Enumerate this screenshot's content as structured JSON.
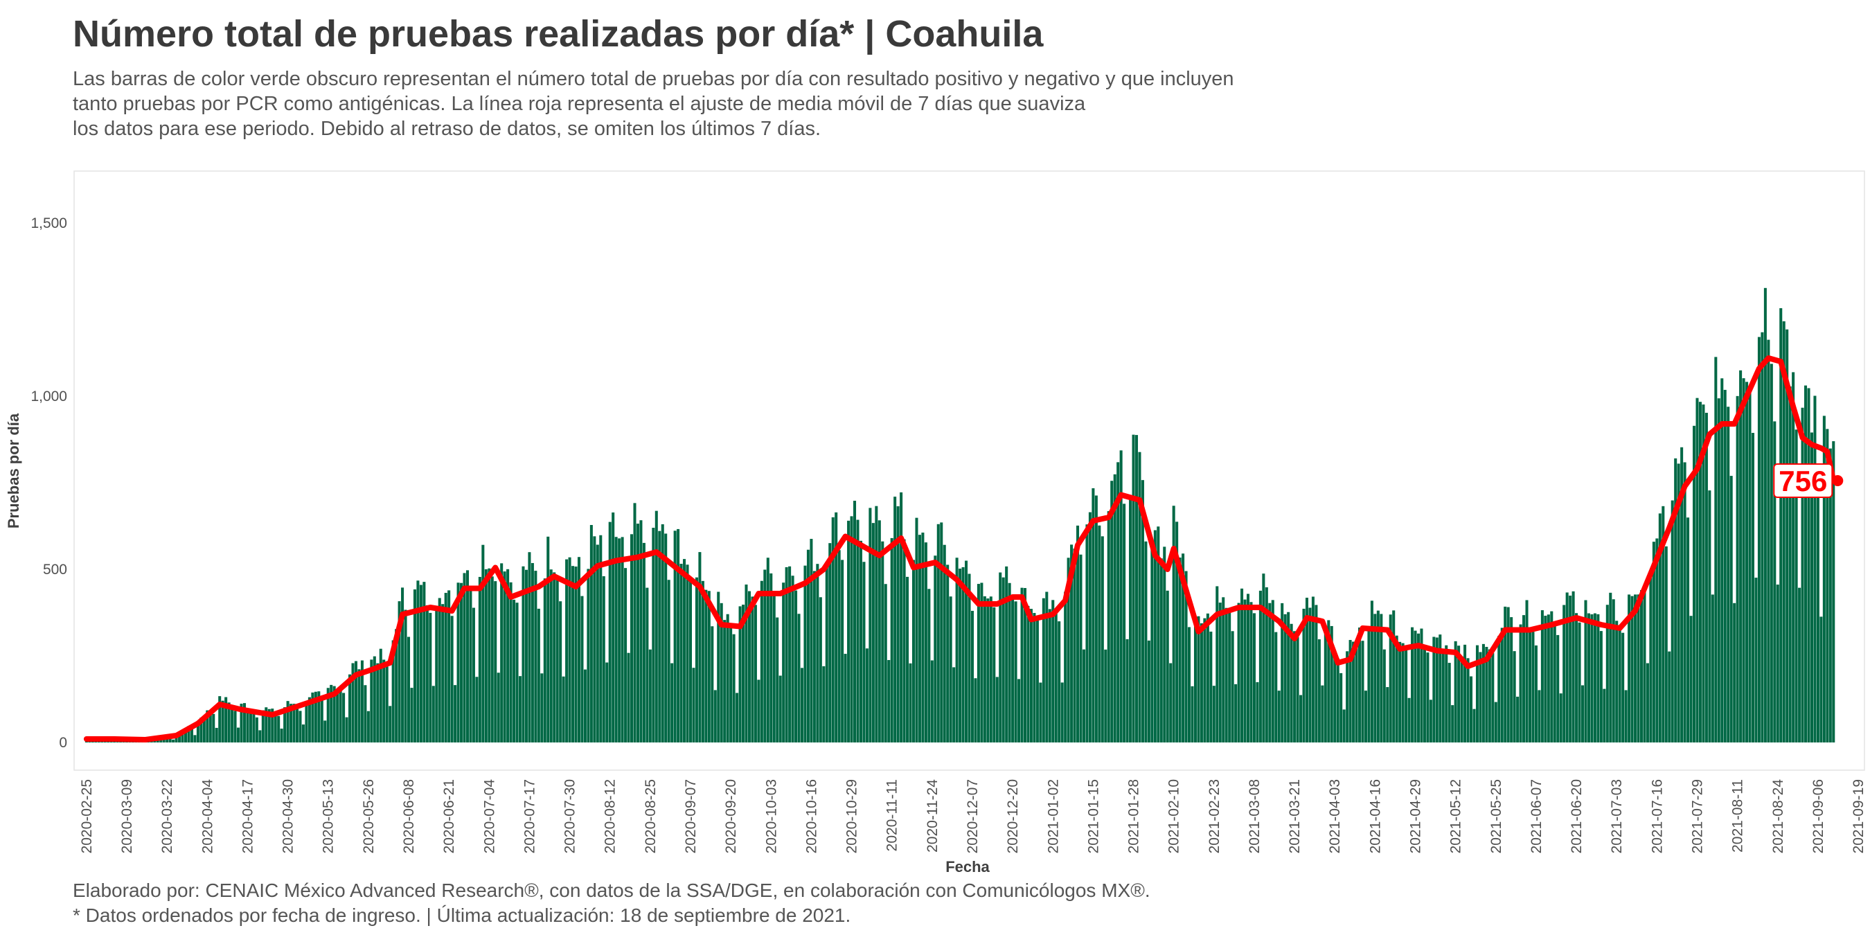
{
  "title": "Número total de pruebas realizadas por día* | Coahuila",
  "subtitle": [
    "Las barras de color verde obscuro representan el número total de pruebas por día con resultado positivo y negativo y que incluyen",
    "tanto pruebas por PCR como antigénicas. La línea roja representa el ajuste de media móvil de 7 días que suaviza",
    "los datos para ese periodo. Debido al retraso de datos, se omiten los últimos 7 días."
  ],
  "caption": [
    "Elaborado por: CENAIC México Advanced Research®, con datos de la SSA/DGE, en colaboración con Comunicólogos MX®.",
    "* Datos ordenados por fecha de ingreso. | Última actualización: 18 de septiembre de 2021."
  ],
  "colors": {
    "bars": "#006845",
    "line": "#ff0000",
    "text": "#404040"
  },
  "chart_data": {
    "type": "bar",
    "xlabel": "Fecha",
    "ylabel": "Pruebas por día",
    "x_start": "2020-02-25",
    "x_end": "2021-09-11",
    "xlim": [
      "2020-02-21",
      "2021-09-21"
    ],
    "ylim": [
      -80,
      1650
    ],
    "y_ticks": [
      0,
      500,
      1000,
      1500
    ],
    "y_tick_labels": [
      "0",
      "500",
      "1,000",
      "1,500"
    ],
    "x_ticks": [
      "2020-02-25",
      "2020-03-09",
      "2020-03-22",
      "2020-04-04",
      "2020-04-17",
      "2020-04-30",
      "2020-05-13",
      "2020-05-26",
      "2020-06-08",
      "2020-06-21",
      "2020-07-04",
      "2020-07-17",
      "2020-07-30",
      "2020-08-12",
      "2020-08-25",
      "2020-09-07",
      "2020-09-20",
      "2020-10-03",
      "2020-10-16",
      "2020-10-29",
      "2020-11-11",
      "2020-11-24",
      "2020-12-07",
      "2020-12-20",
      "2021-01-02",
      "2021-01-15",
      "2021-01-28",
      "2021-02-10",
      "2021-02-23",
      "2021-03-08",
      "2021-03-21",
      "2021-04-03",
      "2021-04-16",
      "2021-04-29",
      "2021-05-12",
      "2021-05-25",
      "2021-06-07",
      "2021-06-20",
      "2021-07-03",
      "2021-07-16",
      "2021-07-29",
      "2021-08-11",
      "2021-08-24",
      "2021-09-06",
      "2021-09-19"
    ],
    "series": [
      {
        "name": "Pruebas totales",
        "style": "bars"
      },
      {
        "name": "Media móvil 7 días",
        "style": "line"
      }
    ],
    "moving_average_points": [
      [
        "2020-02-25",
        10
      ],
      [
        "2020-03-05",
        10
      ],
      [
        "2020-03-15",
        8
      ],
      [
        "2020-03-25",
        20
      ],
      [
        "2020-04-01",
        55
      ],
      [
        "2020-04-08",
        110
      ],
      [
        "2020-04-15",
        95
      ],
      [
        "2020-04-25",
        80
      ],
      [
        "2020-05-05",
        110
      ],
      [
        "2020-05-15",
        140
      ],
      [
        "2020-05-22",
        195
      ],
      [
        "2020-05-27",
        210
      ],
      [
        "2020-06-02",
        230
      ],
      [
        "2020-06-06",
        370
      ],
      [
        "2020-06-15",
        390
      ],
      [
        "2020-06-22",
        380
      ],
      [
        "2020-06-26",
        445
      ],
      [
        "2020-07-01",
        445
      ],
      [
        "2020-07-06",
        505
      ],
      [
        "2020-07-11",
        420
      ],
      [
        "2020-07-20",
        450
      ],
      [
        "2020-07-25",
        480
      ],
      [
        "2020-08-01",
        450
      ],
      [
        "2020-08-08",
        510
      ],
      [
        "2020-08-14",
        525
      ],
      [
        "2020-08-21",
        535
      ],
      [
        "2020-08-27",
        550
      ],
      [
        "2020-09-03",
        500
      ],
      [
        "2020-09-10",
        450
      ],
      [
        "2020-09-17",
        340
      ],
      [
        "2020-09-23",
        335
      ],
      [
        "2020-09-29",
        430
      ],
      [
        "2020-10-06",
        430
      ],
      [
        "2020-10-14",
        460
      ],
      [
        "2020-10-20",
        500
      ],
      [
        "2020-10-27",
        595
      ],
      [
        "2020-11-03",
        560
      ],
      [
        "2020-11-07",
        540
      ],
      [
        "2020-11-14",
        590
      ],
      [
        "2020-11-18",
        505
      ],
      [
        "2020-11-25",
        520
      ],
      [
        "2020-12-02",
        470
      ],
      [
        "2020-12-09",
        400
      ],
      [
        "2020-12-15",
        400
      ],
      [
        "2020-12-20",
        420
      ],
      [
        "2020-12-23",
        420
      ],
      [
        "2020-12-26",
        355
      ],
      [
        "2021-01-02",
        370
      ],
      [
        "2021-01-06",
        410
      ],
      [
        "2021-01-10",
        570
      ],
      [
        "2021-01-15",
        640
      ],
      [
        "2021-01-20",
        650
      ],
      [
        "2021-01-24",
        715
      ],
      [
        "2021-01-30",
        700
      ],
      [
        "2021-02-04",
        540
      ],
      [
        "2021-02-08",
        500
      ],
      [
        "2021-02-10",
        560
      ],
      [
        "2021-02-13",
        470
      ],
      [
        "2021-02-18",
        320
      ],
      [
        "2021-02-24",
        370
      ],
      [
        "2021-03-03",
        390
      ],
      [
        "2021-03-10",
        390
      ],
      [
        "2021-03-16",
        350
      ],
      [
        "2021-03-21",
        300
      ],
      [
        "2021-03-25",
        360
      ],
      [
        "2021-03-30",
        350
      ],
      [
        "2021-04-04",
        230
      ],
      [
        "2021-04-08",
        240
      ],
      [
        "2021-04-12",
        330
      ],
      [
        "2021-04-20",
        325
      ],
      [
        "2021-04-24",
        270
      ],
      [
        "2021-04-30",
        280
      ],
      [
        "2021-05-06",
        265
      ],
      [
        "2021-05-12",
        260
      ],
      [
        "2021-05-16",
        220
      ],
      [
        "2021-05-22",
        240
      ],
      [
        "2021-05-28",
        325
      ],
      [
        "2021-06-05",
        325
      ],
      [
        "2021-06-12",
        340
      ],
      [
        "2021-06-20",
        360
      ],
      [
        "2021-06-28",
        340
      ],
      [
        "2021-07-04",
        330
      ],
      [
        "2021-07-09",
        380
      ],
      [
        "2021-07-15",
        510
      ],
      [
        "2021-07-20",
        620
      ],
      [
        "2021-07-25",
        740
      ],
      [
        "2021-07-29",
        790
      ],
      [
        "2021-08-02",
        890
      ],
      [
        "2021-08-06",
        920
      ],
      [
        "2021-08-10",
        920
      ],
      [
        "2021-08-14",
        1000
      ],
      [
        "2021-08-18",
        1080
      ],
      [
        "2021-08-21",
        1110
      ],
      [
        "2021-08-25",
        1100
      ],
      [
        "2021-08-29",
        970
      ],
      [
        "2021-09-01",
        880
      ],
      [
        "2021-09-04",
        860
      ],
      [
        "2021-09-07",
        850
      ],
      [
        "2021-09-09",
        840
      ],
      [
        "2021-09-11",
        756
      ]
    ],
    "annotations": [
      {
        "x": "2021-09-11",
        "y": 756,
        "text": "756"
      }
    ]
  }
}
